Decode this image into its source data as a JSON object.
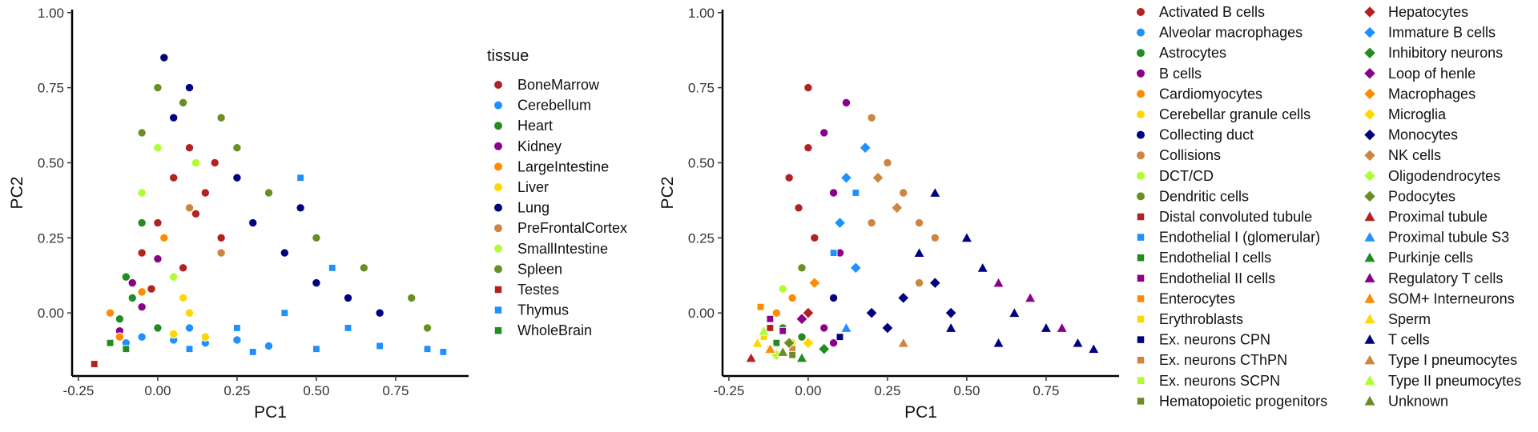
{
  "chart_data": [
    {
      "type": "scatter",
      "xlabel": "PC1",
      "ylabel": "PC2",
      "xlim": [
        -0.27,
        0.98
      ],
      "ylim": [
        -0.21,
        1.01
      ],
      "xticks": [
        "-0.25",
        "0.00",
        "0.25",
        "0.50",
        "0.75"
      ],
      "xtick_values": [
        -0.25,
        0.0,
        0.25,
        0.5,
        0.75
      ],
      "yticks": [
        "0.00",
        "0.25",
        "0.50",
        "0.75",
        "1.00"
      ],
      "ytick_values": [
        0.0,
        0.25,
        0.5,
        0.75,
        1.0
      ],
      "grid": false,
      "legend_title": "tissue",
      "legend_position": "right",
      "note": "Dense point cloud filling a triangle with vertices near (-0.20,-0.17), (0.02,0.96), (0.92,-0.13)",
      "series": [
        {
          "name": "BoneMarrow",
          "color": "#B22222",
          "shape": "circle",
          "points": [
            [
              -0.05,
              0.2
            ],
            [
              0.0,
              0.3
            ],
            [
              0.05,
              0.45
            ],
            [
              0.1,
              0.55
            ],
            [
              0.15,
              0.4
            ],
            [
              0.2,
              0.25
            ],
            [
              0.08,
              0.15
            ],
            [
              -0.02,
              0.08
            ],
            [
              0.12,
              0.33
            ],
            [
              0.18,
              0.5
            ]
          ]
        },
        {
          "name": "Cerebellum",
          "color": "#1E90FF",
          "shape": "circle",
          "points": [
            [
              -0.05,
              -0.08
            ],
            [
              0.05,
              -0.09
            ],
            [
              0.15,
              -0.1
            ],
            [
              0.25,
              -0.09
            ],
            [
              0.35,
              -0.11
            ],
            [
              -0.1,
              -0.1
            ],
            [
              0.1,
              -0.05
            ]
          ]
        },
        {
          "name": "Heart",
          "color": "#228B22",
          "shape": "circle",
          "points": [
            [
              -0.1,
              0.12
            ],
            [
              -0.08,
              0.05
            ],
            [
              -0.12,
              -0.02
            ],
            [
              -0.05,
              0.3
            ],
            [
              0.0,
              -0.05
            ]
          ]
        },
        {
          "name": "Kidney",
          "color": "#8B008B",
          "shape": "circle",
          "points": [
            [
              -0.12,
              -0.06
            ],
            [
              -0.05,
              0.02
            ],
            [
              -0.08,
              0.1
            ],
            [
              0.0,
              0.18
            ]
          ]
        },
        {
          "name": "LargeIntestine",
          "color": "#FF8C00",
          "shape": "circle",
          "points": [
            [
              -0.15,
              0.0
            ],
            [
              -0.12,
              -0.08
            ],
            [
              -0.05,
              0.07
            ],
            [
              0.02,
              0.25
            ]
          ]
        },
        {
          "name": "Liver",
          "color": "#FFD700",
          "shape": "circle",
          "points": [
            [
              0.05,
              -0.07
            ],
            [
              0.1,
              0.0
            ],
            [
              0.15,
              -0.08
            ],
            [
              0.08,
              0.05
            ]
          ]
        },
        {
          "name": "Lung",
          "color": "#000080",
          "shape": "circle",
          "points": [
            [
              0.02,
              0.85
            ],
            [
              0.05,
              0.65
            ],
            [
              0.25,
              0.45
            ],
            [
              0.3,
              0.3
            ],
            [
              0.4,
              0.2
            ],
            [
              0.5,
              0.1
            ],
            [
              0.6,
              0.05
            ],
            [
              0.7,
              0.0
            ],
            [
              0.45,
              0.35
            ],
            [
              0.1,
              0.75
            ]
          ]
        },
        {
          "name": "PreFrontalCortex",
          "color": "#CD853F",
          "shape": "circle",
          "points": [
            [
              0.1,
              0.35
            ],
            [
              0.2,
              0.2
            ]
          ]
        },
        {
          "name": "SmallIntestine",
          "color": "#ADFF2F",
          "shape": "circle",
          "points": [
            [
              0.0,
              0.55
            ],
            [
              0.12,
              0.5
            ],
            [
              -0.05,
              0.4
            ],
            [
              0.05,
              0.12
            ]
          ]
        },
        {
          "name": "Spleen",
          "color": "#6B8E23",
          "shape": "circle",
          "points": [
            [
              0.0,
              0.75
            ],
            [
              0.08,
              0.7
            ],
            [
              0.2,
              0.65
            ],
            [
              0.25,
              0.55
            ],
            [
              0.35,
              0.4
            ],
            [
              0.5,
              0.25
            ],
            [
              0.65,
              0.15
            ],
            [
              0.8,
              0.05
            ],
            [
              0.85,
              -0.05
            ],
            [
              -0.05,
              0.6
            ]
          ]
        },
        {
          "name": "Testes",
          "color": "#B22222",
          "shape": "square",
          "points": [
            [
              -0.2,
              -0.17
            ]
          ]
        },
        {
          "name": "Thymus",
          "color": "#1E90FF",
          "shape": "square",
          "points": [
            [
              0.1,
              -0.12
            ],
            [
              0.3,
              -0.13
            ],
            [
              0.5,
              -0.12
            ],
            [
              0.7,
              -0.11
            ],
            [
              0.85,
              -0.12
            ],
            [
              0.45,
              0.45
            ],
            [
              0.55,
              0.15
            ],
            [
              0.25,
              -0.05
            ],
            [
              0.6,
              -0.05
            ],
            [
              0.4,
              0.0
            ],
            [
              0.9,
              -0.13
            ]
          ]
        },
        {
          "name": "WholeBrain",
          "color": "#228B22",
          "shape": "square",
          "points": [
            [
              -0.1,
              -0.12
            ],
            [
              -0.15,
              -0.1
            ]
          ]
        }
      ]
    },
    {
      "type": "scatter",
      "xlabel": "PC1",
      "ylabel": "PC2",
      "xlim": [
        -0.27,
        0.98
      ],
      "ylim": [
        -0.21,
        1.01
      ],
      "xticks": [
        "-0.25",
        "0.00",
        "0.25",
        "0.50",
        "0.75"
      ],
      "xtick_values": [
        -0.25,
        0.0,
        0.25,
        0.5,
        0.75
      ],
      "yticks": [
        "0.00",
        "0.25",
        "0.50",
        "0.75",
        "1.00"
      ],
      "ytick_values": [
        0.0,
        0.25,
        0.5,
        0.75,
        1.0
      ],
      "grid": false,
      "legend_title": "",
      "legend_position": "right",
      "series": [
        {
          "name": "Activated B cells",
          "color": "#B22222",
          "shape": "circle",
          "points": [
            [
              -0.03,
              0.35
            ],
            [
              0.0,
              0.55
            ],
            [
              -0.06,
              0.45
            ],
            [
              0.02,
              0.25
            ],
            [
              0.0,
              0.75
            ]
          ]
        },
        {
          "name": "Alveolar macrophages",
          "color": "#1E90FF",
          "shape": "circle",
          "points": []
        },
        {
          "name": "Astrocytes",
          "color": "#228B22",
          "shape": "circle",
          "points": [
            [
              -0.08,
              -0.05
            ],
            [
              -0.02,
              -0.08
            ]
          ]
        },
        {
          "name": "B cells",
          "color": "#8B008B",
          "shape": "circle",
          "points": [
            [
              0.05,
              0.6
            ],
            [
              0.08,
              0.4
            ],
            [
              0.1,
              0.2
            ],
            [
              0.12,
              0.7
            ],
            [
              0.05,
              -0.05
            ],
            [
              0.08,
              -0.1
            ]
          ]
        },
        {
          "name": "Cardiomyocytes",
          "color": "#FF8C00",
          "shape": "circle",
          "points": [
            [
              -0.1,
              0.0
            ],
            [
              -0.05,
              0.05
            ]
          ]
        },
        {
          "name": "Cerebellar granule cells",
          "color": "#FFD700",
          "shape": "circle",
          "points": [
            [
              -0.05,
              -0.1
            ]
          ]
        },
        {
          "name": "Collecting duct",
          "color": "#000080",
          "shape": "circle",
          "points": [
            [
              0.08,
              0.05
            ]
          ]
        },
        {
          "name": "Collisions",
          "color": "#CD853F",
          "shape": "circle",
          "points": [
            [
              0.2,
              0.65
            ],
            [
              0.25,
              0.5
            ],
            [
              0.3,
              0.4
            ],
            [
              0.35,
              0.3
            ],
            [
              0.4,
              0.25
            ],
            [
              0.2,
              0.3
            ],
            [
              0.35,
              0.1
            ]
          ]
        },
        {
          "name": "DCT/CD",
          "color": "#ADFF2F",
          "shape": "circle",
          "points": [
            [
              -0.08,
              0.08
            ]
          ]
        },
        {
          "name": "Dendritic cells",
          "color": "#6B8E23",
          "shape": "circle",
          "points": [
            [
              -0.02,
              0.15
            ]
          ]
        },
        {
          "name": "Distal convoluted tubule",
          "color": "#B22222",
          "shape": "square",
          "points": [
            [
              -0.12,
              -0.05
            ]
          ]
        },
        {
          "name": "Endothelial I (glomerular)",
          "color": "#1E90FF",
          "shape": "square",
          "points": [
            [
              0.15,
              0.4
            ],
            [
              0.08,
              0.2
            ]
          ]
        },
        {
          "name": "Endothelial I cells",
          "color": "#228B22",
          "shape": "square",
          "points": [
            [
              -0.1,
              -0.1
            ]
          ]
        },
        {
          "name": "Endothelial II cells",
          "color": "#8B008B",
          "shape": "square",
          "points": [
            [
              -0.12,
              -0.02
            ],
            [
              -0.08,
              -0.06
            ]
          ]
        },
        {
          "name": "Enterocytes",
          "color": "#FF8C00",
          "shape": "square",
          "points": [
            [
              -0.15,
              0.02
            ]
          ]
        },
        {
          "name": "Erythroblasts",
          "color": "#FFD700",
          "shape": "square",
          "points": [
            [
              -0.14,
              -0.08
            ]
          ]
        },
        {
          "name": "Ex. neurons CPN",
          "color": "#000080",
          "shape": "square",
          "points": [
            [
              0.1,
              -0.08
            ]
          ]
        },
        {
          "name": "Ex. neurons CThPN",
          "color": "#CD853F",
          "shape": "square",
          "points": [
            [
              -0.05,
              -0.12
            ]
          ]
        },
        {
          "name": "Ex. neurons SCPN",
          "color": "#ADFF2F",
          "shape": "square",
          "points": [
            [
              -0.12,
              -0.12
            ]
          ]
        },
        {
          "name": "Hematopoietic progenitors",
          "color": "#6B8E23",
          "shape": "square",
          "points": [
            [
              -0.05,
              -0.14
            ]
          ]
        },
        {
          "name": "Hepatocytes",
          "color": "#B22222",
          "shape": "diamond",
          "points": [
            [
              0.0,
              0.0
            ]
          ]
        },
        {
          "name": "Immature B cells",
          "color": "#1E90FF",
          "shape": "diamond",
          "points": [
            [
              0.12,
              0.45
            ],
            [
              0.18,
              0.55
            ],
            [
              0.1,
              0.3
            ],
            [
              0.15,
              0.15
            ]
          ]
        },
        {
          "name": "Inhibitory neurons",
          "color": "#228B22",
          "shape": "diamond",
          "points": [
            [
              0.05,
              -0.12
            ]
          ]
        },
        {
          "name": "Loop of henle",
          "color": "#8B008B",
          "shape": "diamond",
          "points": [
            [
              -0.02,
              -0.02
            ]
          ]
        },
        {
          "name": "Macrophages",
          "color": "#FF8C00",
          "shape": "diamond",
          "points": [
            [
              0.02,
              0.1
            ]
          ]
        },
        {
          "name": "Microglia",
          "color": "#FFD700",
          "shape": "diamond",
          "points": [
            [
              0.0,
              -0.1
            ]
          ]
        },
        {
          "name": "Monocytes",
          "color": "#000080",
          "shape": "diamond",
          "points": [
            [
              0.2,
              0.0
            ],
            [
              0.3,
              0.05
            ],
            [
              0.25,
              -0.05
            ],
            [
              0.4,
              0.1
            ],
            [
              0.45,
              0.0
            ]
          ]
        },
        {
          "name": "NK cells",
          "color": "#CD853F",
          "shape": "diamond",
          "points": [
            [
              0.22,
              0.45
            ],
            [
              0.28,
              0.35
            ]
          ]
        },
        {
          "name": "Oligodendrocytes",
          "color": "#ADFF2F",
          "shape": "diamond",
          "points": [
            [
              -0.1,
              -0.14
            ]
          ]
        },
        {
          "name": "Podocytes",
          "color": "#6B8E23",
          "shape": "diamond",
          "points": [
            [
              -0.06,
              -0.1
            ]
          ]
        },
        {
          "name": "Proximal tubule",
          "color": "#B22222",
          "shape": "triangle",
          "points": [
            [
              -0.18,
              -0.15
            ]
          ]
        },
        {
          "name": "Proximal tubule S3",
          "color": "#1E90FF",
          "shape": "triangle",
          "points": [
            [
              0.12,
              -0.05
            ]
          ]
        },
        {
          "name": "Purkinje cells",
          "color": "#228B22",
          "shape": "triangle",
          "points": [
            [
              -0.02,
              -0.15
            ]
          ]
        },
        {
          "name": "Regulatory T cells",
          "color": "#8B008B",
          "shape": "triangle",
          "points": [
            [
              0.6,
              0.1
            ],
            [
              0.7,
              0.05
            ],
            [
              0.8,
              -0.05
            ]
          ]
        },
        {
          "name": "SOM+ Interneurons",
          "color": "#FF8C00",
          "shape": "triangle",
          "points": [
            [
              -0.12,
              -0.12
            ]
          ]
        },
        {
          "name": "Sperm",
          "color": "#FFD700",
          "shape": "triangle",
          "points": [
            [
              -0.16,
              -0.1
            ]
          ]
        },
        {
          "name": "T cells",
          "color": "#000080",
          "shape": "triangle",
          "points": [
            [
              0.4,
              0.4
            ],
            [
              0.5,
              0.25
            ],
            [
              0.55,
              0.15
            ],
            [
              0.65,
              0.0
            ],
            [
              0.75,
              -0.05
            ],
            [
              0.85,
              -0.1
            ],
            [
              0.45,
              -0.05
            ],
            [
              0.6,
              -0.1
            ],
            [
              0.35,
              0.2
            ],
            [
              0.9,
              -0.12
            ]
          ]
        },
        {
          "name": "Type I pneumocytes",
          "color": "#CD853F",
          "shape": "triangle",
          "points": [
            [
              0.3,
              -0.1
            ]
          ]
        },
        {
          "name": "Type II pneumocytes",
          "color": "#ADFF2F",
          "shape": "triangle",
          "points": [
            [
              -0.14,
              -0.06
            ]
          ]
        },
        {
          "name": "Unknown",
          "color": "#6B8E23",
          "shape": "triangle",
          "points": [
            [
              -0.08,
              -0.13
            ]
          ]
        }
      ]
    }
  ]
}
